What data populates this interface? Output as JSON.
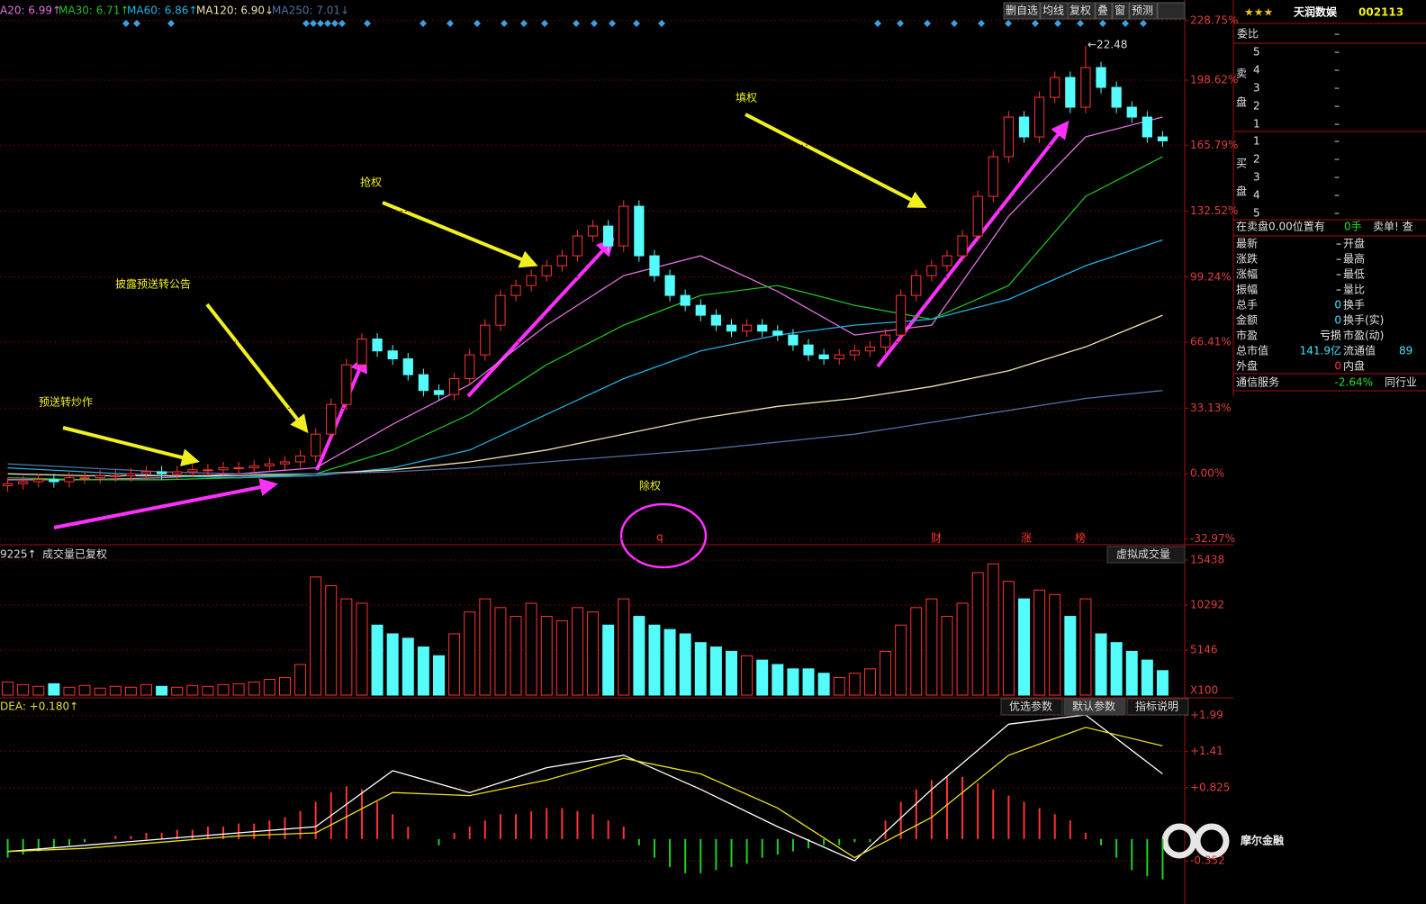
{
  "toolbar": [
    "删自选",
    "均线",
    "复权",
    "叠",
    "窗",
    "预测"
  ],
  "annotations": [
    "预送转炒作",
    "披露预送转公告",
    "抢权",
    "填权",
    "除权"
  ],
  "ex_marker": "q",
  "watermark": "摩尔金融",
  "chart_data": [
    {
      "type": "candlestick",
      "ylim": [
        -34,
        230
      ],
      "yticks": [
        {
          "value": -32.97,
          "label": "-32.97%"
        },
        {
          "value": 0,
          "label": "0.00%"
        },
        {
          "value": 33.13,
          "label": "33.13%"
        },
        {
          "value": 66.41,
          "label": "66.41%"
        },
        {
          "value": 99.24,
          "label": "99.24%"
        },
        {
          "value": 132.52,
          "label": "132.52%"
        },
        {
          "value": 165.79,
          "label": "165.79%"
        },
        {
          "value": 198.62,
          "label": "198.62%"
        },
        {
          "value": 228.75,
          "label": "228.75%"
        }
      ],
      "open": [
        -6,
        -5,
        -4,
        -3,
        -4,
        -2,
        -2,
        -1,
        -1,
        0,
        1,
        0,
        1,
        2,
        2,
        3,
        3,
        4,
        5,
        6,
        9,
        20,
        35,
        55,
        68,
        62,
        58,
        50,
        42,
        40,
        48,
        60,
        75,
        90,
        95,
        100,
        105,
        110,
        120,
        125,
        115,
        135,
        110,
        100,
        90,
        85,
        80,
        75,
        72,
        75,
        72,
        70,
        65,
        60,
        58,
        60,
        62,
        64,
        70,
        90,
        100,
        105,
        110,
        120,
        140,
        160,
        180,
        170,
        190,
        200,
        185,
        205,
        195,
        185,
        180,
        170
      ],
      "high": [
        -2,
        -1,
        0,
        0,
        1,
        1,
        2,
        2,
        3,
        4,
        4,
        4,
        5,
        5,
        6,
        6,
        7,
        8,
        9,
        12,
        23,
        38,
        58,
        71,
        71,
        65,
        61,
        53,
        45,
        51,
        63,
        78,
        93,
        98,
        103,
        108,
        113,
        123,
        128,
        128,
        138,
        138,
        113,
        103,
        93,
        88,
        83,
        78,
        78,
        78,
        75,
        73,
        68,
        63,
        63,
        65,
        67,
        73,
        93,
        103,
        108,
        113,
        123,
        143,
        163,
        183,
        183,
        193,
        203,
        203,
        216,
        208,
        198,
        188,
        183,
        173
      ],
      "low": [
        -9,
        -8,
        -7,
        -7,
        -7,
        -5,
        -5,
        -4,
        -4,
        -3,
        -3,
        -3,
        -2,
        -1,
        -1,
        0,
        0,
        1,
        2,
        3,
        6,
        17,
        32,
        52,
        59,
        55,
        47,
        39,
        37,
        37,
        45,
        57,
        72,
        87,
        92,
        97,
        102,
        107,
        117,
        112,
        112,
        107,
        97,
        87,
        82,
        77,
        72,
        69,
        69,
        69,
        67,
        62,
        57,
        55,
        55,
        57,
        59,
        61,
        67,
        87,
        97,
        102,
        107,
        117,
        137,
        157,
        167,
        167,
        187,
        182,
        182,
        192,
        182,
        177,
        167,
        165
      ],
      "close": [
        -5,
        -4,
        -3,
        -4,
        -2,
        -2,
        -1,
        -1,
        0,
        1,
        0,
        1,
        2,
        2,
        3,
        3,
        4,
        5,
        6,
        9,
        20,
        35,
        55,
        68,
        62,
        58,
        50,
        42,
        40,
        48,
        60,
        75,
        90,
        95,
        100,
        105,
        110,
        120,
        125,
        115,
        135,
        110,
        100,
        90,
        85,
        80,
        75,
        72,
        75,
        72,
        70,
        65,
        60,
        58,
        60,
        62,
        64,
        70,
        90,
        100,
        105,
        110,
        120,
        140,
        160,
        180,
        170,
        190,
        200,
        185,
        205,
        195,
        185,
        180,
        170,
        168
      ],
      "series": [
        {
          "name": "A20: 6.99↑",
          "color": "#e070e0",
          "x": [
            0,
            5,
            10,
            15,
            20,
            25,
            30,
            35,
            40,
            45,
            50,
            55,
            60,
            65,
            70,
            75
          ],
          "values": [
            -3,
            -3,
            -2,
            0,
            3,
            25,
            45,
            75,
            100,
            110,
            92,
            70,
            75,
            130,
            170,
            180
          ]
        },
        {
          "name": "MA30: 6.71↑",
          "color": "#20c020",
          "x": [
            0,
            5,
            10,
            15,
            20,
            25,
            30,
            35,
            40,
            45,
            50,
            55,
            60,
            65,
            70,
            75
          ],
          "values": [
            -2,
            -3,
            -3,
            -2,
            0,
            12,
            30,
            55,
            75,
            90,
            95,
            85,
            78,
            95,
            140,
            160
          ]
        },
        {
          "name": "MA60: 6.86↑",
          "color": "#20b0e0",
          "x": [
            0,
            5,
            10,
            15,
            20,
            25,
            30,
            35,
            40,
            45,
            50,
            55,
            60,
            65,
            70,
            75
          ],
          "values": [
            3,
            1,
            -1,
            -2,
            -1,
            3,
            12,
            30,
            48,
            62,
            70,
            75,
            78,
            88,
            105,
            118
          ]
        },
        {
          "name": "MA120: 6.90↓",
          "color": "#f0e0b0",
          "x": [
            0,
            5,
            10,
            15,
            20,
            25,
            30,
            35,
            40,
            45,
            50,
            55,
            60,
            65,
            70,
            75
          ],
          "values": [
            0,
            -1,
            -1,
            -1,
            0,
            2,
            6,
            12,
            20,
            28,
            34,
            38,
            44,
            52,
            64,
            80
          ]
        },
        {
          "name": "MA250: 7.01↓",
          "color": "#5070a0",
          "x": [
            0,
            5,
            10,
            15,
            20,
            25,
            30,
            35,
            40,
            45,
            50,
            55,
            60,
            65,
            70,
            75
          ],
          "values": [
            5,
            3,
            1,
            0,
            0,
            1,
            3,
            6,
            9,
            12,
            16,
            20,
            26,
            32,
            38,
            42
          ]
        }
      ],
      "peak_label": "←22.48",
      "markers": [
        "财",
        "涨",
        "榜"
      ]
    },
    {
      "type": "volume",
      "left_value": "9225↑",
      "label": "成交量已复权",
      "button": "虚拟成交量",
      "unit": "X100",
      "ylim": [
        0,
        16980
      ],
      "yticks": [
        5146,
        10292,
        15438
      ],
      "values": [
        1500,
        1200,
        1000,
        1300,
        900,
        1100,
        800,
        1000,
        900,
        1200,
        1000,
        900,
        1100,
        1000,
        1200,
        1300,
        1500,
        1800,
        2000,
        3500,
        13500,
        12500,
        11000,
        10500,
        8000,
        7000,
        6500,
        5500,
        4500,
        7000,
        9500,
        11000,
        10000,
        9000,
        10500,
        9000,
        8500,
        10000,
        9500,
        8000,
        11000,
        9000,
        8000,
        7500,
        7000,
        6000,
        5500,
        5000,
        4500,
        4000,
        3500,
        3000,
        3000,
        2500,
        2000,
        2500,
        3000,
        5000,
        8000,
        10000,
        11000,
        9000,
        10500,
        14000,
        15000,
        13000,
        11000,
        12000,
        11500,
        9000,
        11000,
        7000,
        6000,
        5000,
        4000,
        2800
      ]
    },
    {
      "type": "macd",
      "label": "DEA: +0.180↑",
      "buttons": [
        "优选参数",
        "默认参数",
        "指标说明"
      ],
      "ylim": [
        -1.046,
        2.246
      ],
      "yticks": [
        -0.352,
        {
          "value": 0.825,
          "label": "+0.825"
        },
        {
          "value": 1.41,
          "label": "+1.41"
        },
        {
          "value": 1.99,
          "label": "+1.99"
        }
      ],
      "histogram": [
        -0.3,
        -0.25,
        -0.2,
        -0.15,
        -0.1,
        -0.05,
        0,
        0.05,
        0.05,
        0.1,
        0.1,
        0.15,
        0.15,
        0.2,
        0.2,
        0.25,
        0.25,
        0.3,
        0.35,
        0.45,
        0.6,
        0.75,
        0.85,
        0.8,
        0.6,
        0.4,
        0.2,
        0,
        -0.1,
        0.1,
        0.2,
        0.3,
        0.4,
        0.4,
        0.45,
        0.5,
        0.5,
        0.45,
        0.4,
        0.3,
        0.2,
        -0.1,
        -0.3,
        -0.45,
        -0.55,
        -0.55,
        -0.5,
        -0.45,
        -0.4,
        -0.3,
        -0.25,
        -0.2,
        -0.15,
        -0.1,
        -0.1,
        -0.05,
        -0.05,
        0.3,
        0.6,
        0.8,
        0.95,
        1.0,
        1.0,
        0.9,
        0.8,
        0.7,
        0.6,
        0.5,
        0.4,
        0.3,
        0.1,
        -0.1,
        -0.3,
        -0.5,
        -0.6,
        -0.65
      ],
      "x": [
        0,
        5,
        10,
        15,
        20,
        25,
        30,
        35,
        40,
        45,
        50,
        55,
        60,
        65,
        70,
        75
      ],
      "series": [
        {
          "color": "#ffffff",
          "values": [
            -0.2,
            -0.1,
            0,
            0.1,
            0.2,
            1.1,
            0.75,
            1.15,
            1.35,
            0.8,
            0.2,
            -0.35,
            0.8,
            1.85,
            2.0,
            1.05
          ]
        },
        {
          "color": "#e8e020",
          "values": [
            -0.2,
            -0.15,
            -0.05,
            0.05,
            0.1,
            0.75,
            0.7,
            0.95,
            1.3,
            1.05,
            0.5,
            -0.3,
            0.35,
            1.35,
            1.8,
            1.5
          ]
        }
      ]
    }
  ],
  "sidebar": {
    "rating": "★★★",
    "name": "天润数娱",
    "code": "002113",
    "ratio_label": "委比",
    "ratio_value": "–",
    "sell_label": [
      "卖",
      "盘"
    ],
    "sell": [
      {
        "level": "5",
        "price": "–"
      },
      {
        "level": "4",
        "price": "–"
      },
      {
        "level": "3",
        "price": "–"
      },
      {
        "level": "2",
        "price": "–"
      },
      {
        "level": "1",
        "price": "–"
      }
    ],
    "buy_label": [
      "买",
      "盘"
    ],
    "buy": [
      {
        "level": "1",
        "price": "–"
      },
      {
        "level": "2",
        "price": "–"
      },
      {
        "level": "3",
        "price": "–"
      },
      {
        "level": "4",
        "price": "–"
      },
      {
        "level": "5",
        "price": "–"
      }
    ],
    "order_note": "在卖盘0.00位置有",
    "order_qty": "0手",
    "order_action": "卖单! 查",
    "quote": [
      [
        "最新",
        "–",
        "开盘"
      ],
      [
        "涨跌",
        "–",
        "最高"
      ],
      [
        "涨幅",
        "–",
        "最低"
      ],
      [
        "振幅",
        "–",
        "量比"
      ],
      [
        "总手",
        "0",
        "换手"
      ],
      [
        "金额",
        "0",
        "换手(实)"
      ],
      [
        "市盈",
        "亏损",
        "市盈(动)"
      ],
      [
        "总市值",
        "141.9亿",
        "流通值",
        "89"
      ],
      [
        "外盘",
        "0",
        "内盘"
      ]
    ],
    "industry": {
      "name": "通信服务",
      "change": "-2.64%",
      "peer": "同行业"
    }
  }
}
